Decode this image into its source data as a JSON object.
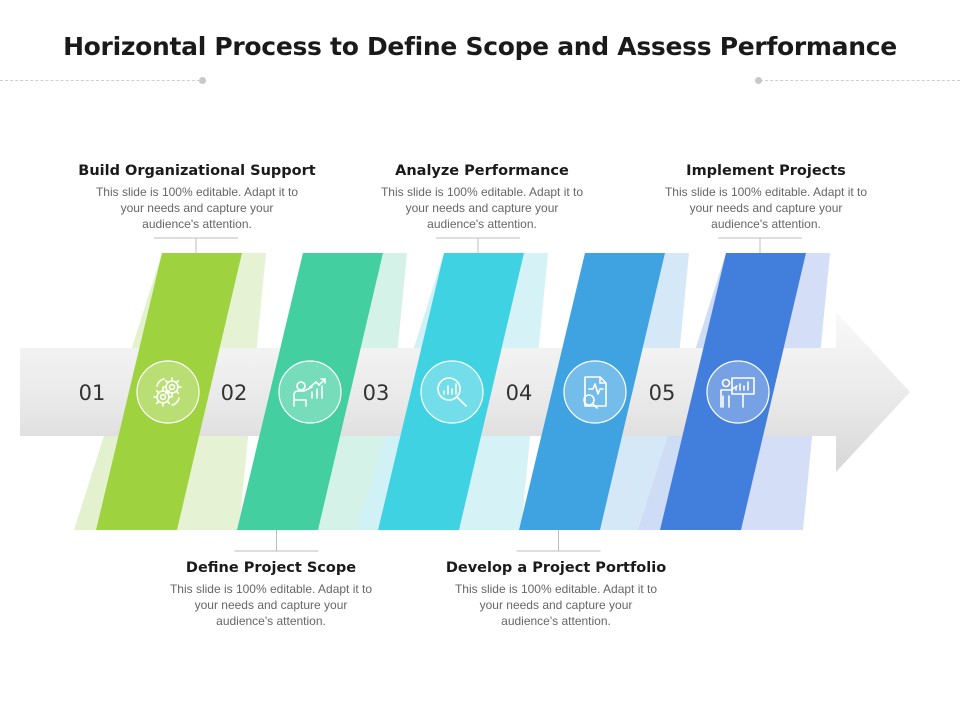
{
  "title": "Horizontal Process to Define Scope and Assess Performance",
  "steps": [
    {
      "number": "01",
      "heading": "Build Organizational Support",
      "description": "This slide is 100% editable. Adapt it to your needs and capture your audience's attention.",
      "icon": "gears-icon",
      "color": "#9ed23f",
      "shadow": "#e3f1cf",
      "label_position": "top"
    },
    {
      "number": "02",
      "heading": "Define Project Scope",
      "description": "This slide is 100% editable. Adapt it to your needs and capture your audience's attention.",
      "icon": "presenter-growth-chart-icon",
      "color": "#43cf9f",
      "shadow": "#d0f1e5",
      "label_position": "bottom"
    },
    {
      "number": "03",
      "heading": "Analyze Performance",
      "description": "This slide is 100% editable. Adapt it to your needs and capture your audience's attention.",
      "icon": "magnifier-chart-icon",
      "color": "#3ed2e2",
      "shadow": "#d0f1f6",
      "label_position": "top"
    },
    {
      "number": "04",
      "heading": "Develop a Project Portfolio",
      "description": "This slide is 100% editable. Adapt it to your needs and capture your audience's attention.",
      "icon": "document-search-icon",
      "color": "#3fa3e2",
      "shadow": "#cfe6f6",
      "label_position": "bottom"
    },
    {
      "number": "05",
      "heading": "Implement Projects",
      "description": "This slide is 100% editable. Adapt it to your needs and capture your audience's attention.",
      "icon": "presentation-board-icon",
      "color": "#427fdc",
      "shadow": "#cfdcf6",
      "label_position": "top"
    }
  ]
}
